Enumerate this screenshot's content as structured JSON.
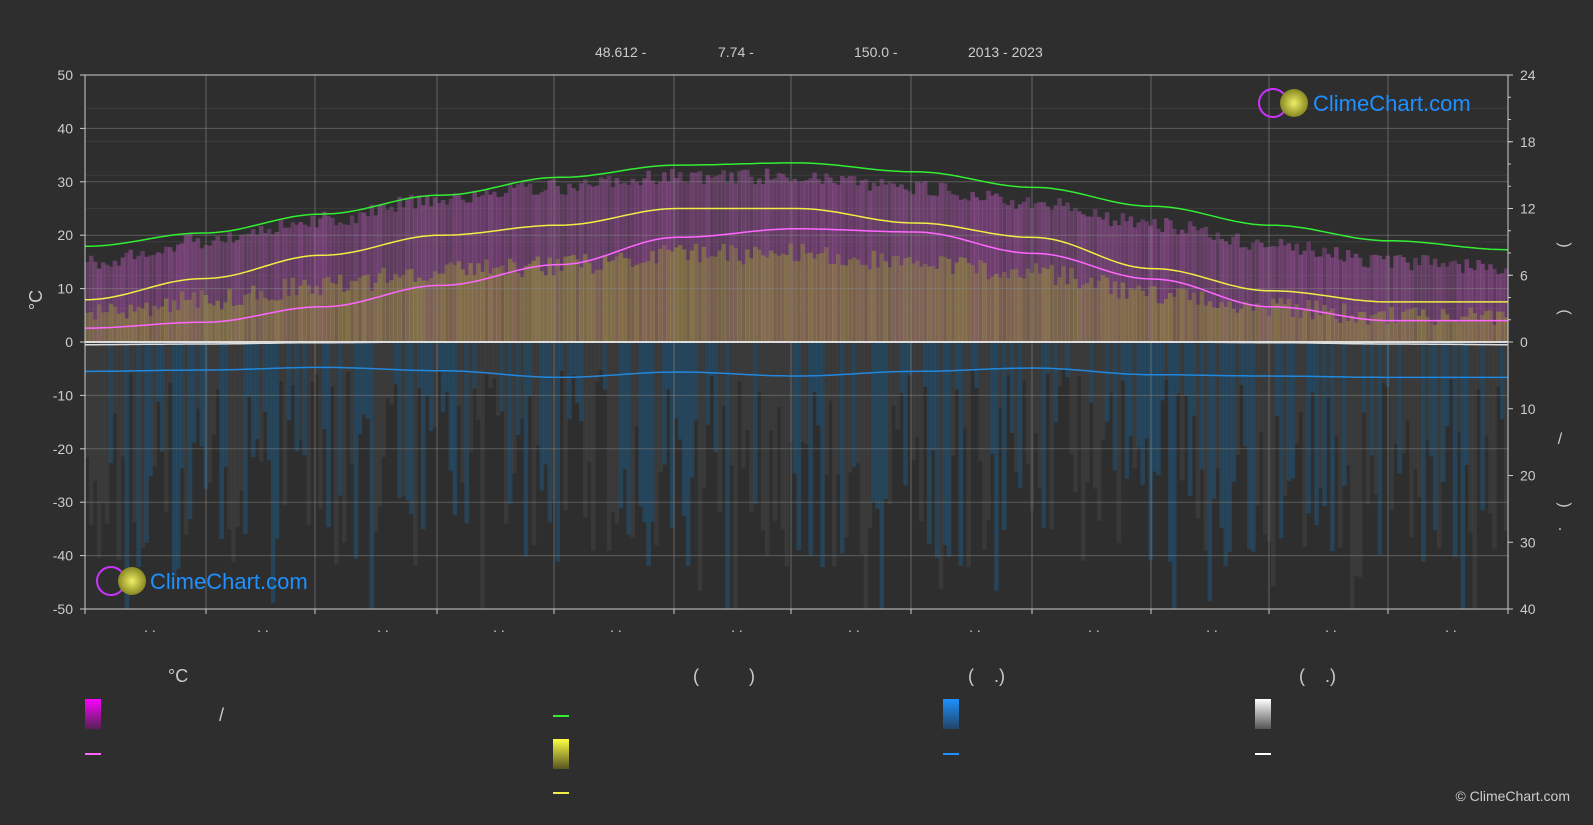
{
  "header": {
    "latitude": "48.612 -",
    "longitude": "7.74 -",
    "elevation": "150.0 -",
    "years": "2013 - 2023"
  },
  "brand": {
    "logo_text": "ClimeChart.com",
    "copyright": "© ClimeChart.com",
    "logo_color": "#1e90ff"
  },
  "chart_data": {
    "type": "area",
    "x_tick_labels": [
      ". .",
      ". .",
      ". .",
      ". .",
      ". .",
      ". .",
      ". .",
      ". .",
      ". .",
      ". .",
      ". .",
      ". ."
    ],
    "left_axis": {
      "label": "°C",
      "range": [
        -50,
        50
      ],
      "ticks": [
        50,
        40,
        30,
        20,
        10,
        0,
        -10,
        -20,
        -30,
        -40,
        -50
      ]
    },
    "right_axis_top": {
      "range": [
        0,
        24
      ],
      "ticks": [
        24,
        18,
        12,
        6,
        0
      ],
      "label_glyphs": [
        ")",
        "("
      ]
    },
    "right_axis_bottom": {
      "range": [
        0,
        40
      ],
      "ticks": [
        0,
        10,
        20,
        30,
        40
      ],
      "label_glyphs": [
        "/",
        ")",
        "."
      ]
    },
    "grid": true,
    "months": 12,
    "series": [
      {
        "key": "daylight",
        "color": "#33ee33",
        "values": [
          8.6,
          9.8,
          11.5,
          13.2,
          14.8,
          15.9,
          16.1,
          15.3,
          13.9,
          12.2,
          10.5,
          9.1,
          8.3
        ]
      },
      {
        "key": "sunshine",
        "color": "#eeee44",
        "values": [
          3.8,
          5.7,
          7.8,
          9.6,
          10.5,
          12.0,
          12.0,
          10.7,
          9.4,
          6.6,
          4.6,
          3.6,
          3.6
        ]
      },
      {
        "key": "temp_mean",
        "color": "#ff66ff",
        "values": [
          2.6,
          3.7,
          6.6,
          10.6,
          14.5,
          19.6,
          21.2,
          20.6,
          16.6,
          11.8,
          6.6,
          4.0,
          4.0
        ]
      },
      {
        "key": "precip",
        "color": "#2288dd",
        "values": [
          4.4,
          4.2,
          3.8,
          4.3,
          5.3,
          4.5,
          5.1,
          4.4,
          3.9,
          4.9,
          5.1,
          5.3,
          5.3
        ]
      },
      {
        "key": "snow",
        "color": "#ffffff",
        "values": [
          0.4,
          0.3,
          0.1,
          0.0,
          0.0,
          0.0,
          0.0,
          0.0,
          0.0,
          0.0,
          0.1,
          0.3,
          0.4
        ]
      }
    ],
    "band_max_temp": [
      15,
      19,
      23,
      27,
      29,
      31,
      31,
      29,
      26,
      22,
      18,
      15,
      14
    ]
  },
  "legend": {
    "col1_title": "°C",
    "col1_slash": "/",
    "col2_title": "(          )",
    "col3_title": "(    .)",
    "col4_title": "(    .)"
  }
}
